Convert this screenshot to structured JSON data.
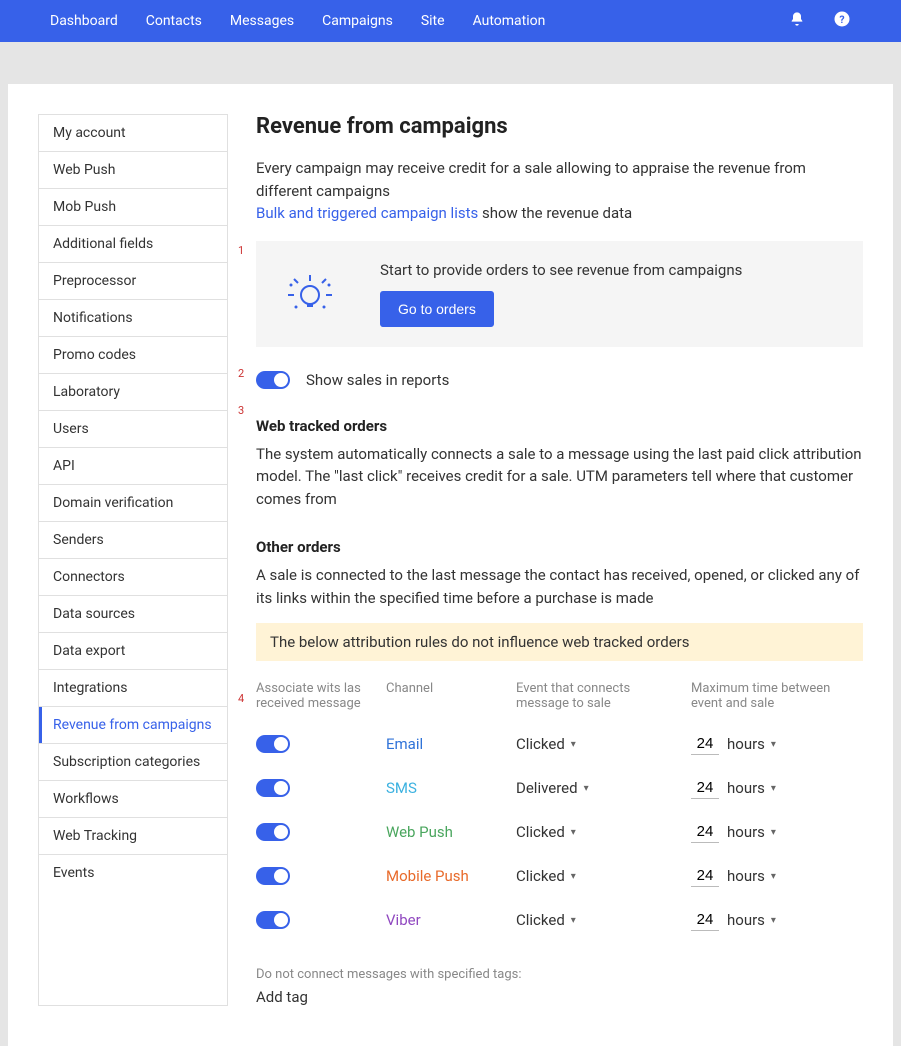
{
  "topnav": {
    "items": [
      "Dashboard",
      "Contacts",
      "Messages",
      "Campaigns",
      "Site",
      "Automation"
    ]
  },
  "sidebar": {
    "items": [
      "My account",
      "Web Push",
      "Mob Push",
      "Additional fields",
      "Preprocessor",
      "Notifications",
      "Promo codes",
      "Laboratory",
      "Users",
      "API",
      "Domain verification",
      "Senders",
      "Connectors",
      "Data sources",
      "Data export",
      "Integrations",
      "Revenue from campaigns",
      "Subscription categories",
      "Workflows",
      "Web Tracking",
      "Events"
    ],
    "active_index": 16
  },
  "page": {
    "title": "Revenue from campaigns",
    "intro1": "Every campaign may receive credit for a sale allowing to appraise the revenue from different campaigns",
    "intro_link": "Bulk and triggered campaign lists",
    "intro2": " show the revenue data"
  },
  "promo": {
    "text": "Start to provide orders to see revenue from campaigns",
    "button": "Go to orders"
  },
  "show_sales": {
    "label": "Show sales in reports",
    "on": true
  },
  "web_orders": {
    "title": "Web tracked orders",
    "body": "The system automatically connects a sale to a message using the last paid click attribution model. The \"last click\" receives credit for a sale. UTM parameters tell where that customer comes from"
  },
  "other_orders": {
    "title": "Other orders",
    "body": "A sale is connected to the last message the contact has received, opened, or clicked any of its links within the specified time before a purchase is made"
  },
  "warning": "The below attribution rules do not influence web tracked orders",
  "table": {
    "headers": {
      "assoc": "Associate wits las received message",
      "channel": "Channel",
      "event": "Event that connects message to sale",
      "time": "Maximum time between event and sale"
    },
    "rows": [
      {
        "on": true,
        "channel": "Email",
        "cls": "ch-email",
        "event": "Clicked",
        "num": "24",
        "unit": "hours"
      },
      {
        "on": true,
        "channel": "SMS",
        "cls": "ch-sms",
        "event": "Delivered",
        "num": "24",
        "unit": "hours"
      },
      {
        "on": true,
        "channel": "Web Push",
        "cls": "ch-webpush",
        "event": "Clicked",
        "num": "24",
        "unit": "hours"
      },
      {
        "on": true,
        "channel": "Mobile Push",
        "cls": "ch-mobpush",
        "event": "Clicked",
        "num": "24",
        "unit": "hours"
      },
      {
        "on": true,
        "channel": "Viber",
        "cls": "ch-viber",
        "event": "Clicked",
        "num": "24",
        "unit": "hours"
      }
    ]
  },
  "tags": {
    "label": "Do not connect messages with specified tags:",
    "add": "Add tag"
  },
  "annotations": [
    "1",
    "2",
    "3",
    "4"
  ],
  "colors": {
    "brand": "#3761e9"
  }
}
